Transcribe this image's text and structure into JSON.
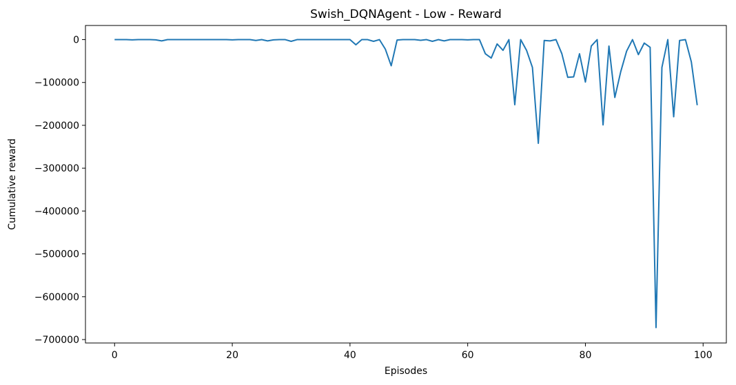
{
  "chart_data": {
    "type": "line",
    "title": "Swish_DQNAgent - Low - Reward",
    "xlabel": "Episodes",
    "ylabel": "Cumulative reward",
    "xlim": [
      -4.95,
      103.95
    ],
    "ylim": [
      -708000,
      33000
    ],
    "xticks": [
      0,
      20,
      40,
      60,
      80,
      100
    ],
    "xtick_labels": [
      "0",
      "20",
      "40",
      "60",
      "80",
      "100"
    ],
    "yticks": [
      0,
      -100000,
      -200000,
      -300000,
      -400000,
      -500000,
      -600000,
      -700000
    ],
    "ytick_labels": [
      "0",
      "−100000",
      "−200000",
      "−300000",
      "−400000",
      "−500000",
      "−600000",
      "−700000"
    ],
    "grid": false,
    "legend": "none",
    "series": [
      {
        "color": "#1f77b4",
        "x": [
          0,
          1,
          2,
          3,
          4,
          5,
          6,
          7,
          8,
          9,
          10,
          11,
          12,
          13,
          14,
          15,
          16,
          17,
          18,
          19,
          20,
          21,
          22,
          23,
          24,
          25,
          26,
          27,
          28,
          29,
          30,
          31,
          32,
          33,
          34,
          35,
          36,
          37,
          38,
          39,
          40,
          41,
          42,
          43,
          44,
          45,
          46,
          47,
          48,
          49,
          50,
          51,
          52,
          53,
          54,
          55,
          56,
          57,
          58,
          59,
          60,
          61,
          62,
          63,
          64,
          65,
          66,
          67,
          68,
          69,
          70,
          71,
          72,
          73,
          74,
          75,
          76,
          77,
          78,
          79,
          80,
          81,
          82,
          83,
          84,
          85,
          86,
          87,
          88,
          89,
          90,
          91,
          92,
          93,
          94,
          95,
          96,
          97,
          98,
          99
        ],
        "y": [
          0,
          0,
          0,
          -500,
          0,
          0,
          0,
          -500,
          -3000,
          0,
          0,
          0,
          0,
          0,
          0,
          0,
          0,
          0,
          0,
          0,
          -500,
          0,
          0,
          0,
          -2000,
          0,
          -3000,
          -500,
          0,
          0,
          -4000,
          0,
          0,
          0,
          0,
          0,
          0,
          0,
          0,
          0,
          0,
          -12000,
          0,
          0,
          -4000,
          0,
          -22000,
          -61000,
          -1000,
          0,
          0,
          0,
          -1500,
          0,
          -4000,
          0,
          -3000,
          0,
          0,
          0,
          -500,
          0,
          0,
          -33000,
          -43000,
          -10000,
          -25000,
          0,
          -152000,
          0,
          -25000,
          -65000,
          -242000,
          -2000,
          -3000,
          0,
          -33000,
          -88000,
          -87000,
          -33000,
          -99000,
          -15000,
          0,
          -199000,
          -15000,
          -135000,
          -75000,
          -27000,
          0,
          -35000,
          -8000,
          -18000,
          -672000,
          -65000,
          0,
          -180000,
          -2000,
          0,
          -52000,
          -153000
        ]
      }
    ]
  }
}
